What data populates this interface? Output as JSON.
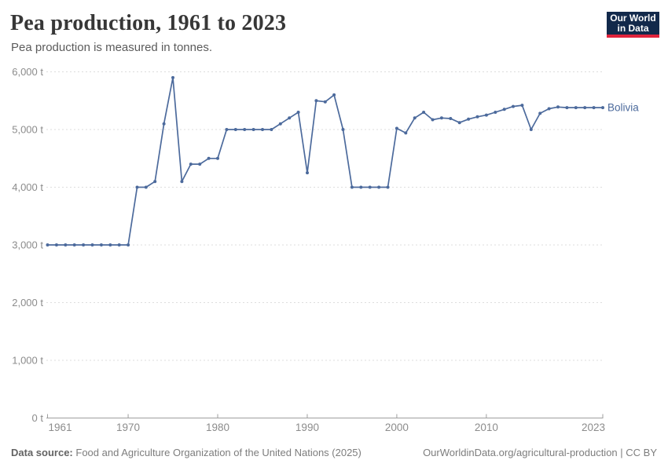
{
  "header": {
    "title": "Pea production, 1961 to 2023",
    "subtitle": "Pea production is measured in tonnes.",
    "logo": {
      "line1": "Our World",
      "line2": "in Data"
    }
  },
  "chart_data": {
    "type": "line",
    "title": "Pea production, 1961 to 2023",
    "unit": "tonnes",
    "xlim": [
      1961,
      2023
    ],
    "ylim": [
      0,
      6000
    ],
    "grid": "horizontal-dashed",
    "legend_position": "end-of-line-label",
    "x_tick_labels": [
      "1961",
      "1970",
      "1980",
      "1990",
      "2000",
      "2010",
      "2023"
    ],
    "x_tick_years": [
      1961,
      1970,
      1980,
      1990,
      2000,
      2010,
      2023
    ],
    "y_tick_values": [
      0,
      1000,
      2000,
      3000,
      4000,
      5000,
      6000
    ],
    "y_tick_labels": [
      "0 t",
      "1,000 t",
      "2,000 t",
      "3,000 t",
      "4,000 t",
      "5,000 t",
      "6,000 t"
    ],
    "series": [
      {
        "name": "Bolivia",
        "color": "#4C6A9C",
        "years": [
          1961,
          1962,
          1963,
          1964,
          1965,
          1966,
          1967,
          1968,
          1969,
          1970,
          1971,
          1972,
          1973,
          1974,
          1975,
          1976,
          1977,
          1978,
          1979,
          1980,
          1981,
          1982,
          1983,
          1984,
          1985,
          1986,
          1987,
          1988,
          1989,
          1990,
          1991,
          1992,
          1993,
          1994,
          1995,
          1996,
          1997,
          1998,
          1999,
          2000,
          2001,
          2002,
          2003,
          2004,
          2005,
          2006,
          2007,
          2008,
          2009,
          2010,
          2011,
          2012,
          2013,
          2014,
          2015,
          2016,
          2017,
          2018,
          2019,
          2020,
          2021,
          2022,
          2023
        ],
        "values": [
          3000,
          3000,
          3000,
          3000,
          3000,
          3000,
          3000,
          3000,
          3000,
          3000,
          4000,
          4000,
          4100,
          5100,
          5900,
          4100,
          4400,
          4400,
          4500,
          4500,
          5000,
          5000,
          5000,
          5000,
          5000,
          5000,
          5100,
          5200,
          5300,
          4250,
          5500,
          5480,
          5600,
          5000,
          4000,
          4000,
          4000,
          4000,
          4000,
          5020,
          4940,
          5200,
          5300,
          5170,
          5200,
          5190,
          5120,
          5180,
          5220,
          5250,
          5300,
          5350,
          5400,
          5420,
          5000,
          5280,
          5360,
          5390,
          5380,
          5380,
          5380,
          5380,
          5380
        ]
      }
    ]
  },
  "colors": {
    "line": "#4C6A9C",
    "grid": "#dddddd",
    "axis": "#9e9e9e",
    "tick_label": "#8c8c8c",
    "logo_bg": "#12294b",
    "logo_red": "#e0233c"
  },
  "footer": {
    "source_label": "Data source:",
    "source_text": "Food and Agriculture Organization of the United Nations (2025)",
    "link_text": "OurWorldinData.org/agricultural-production | CC BY"
  }
}
